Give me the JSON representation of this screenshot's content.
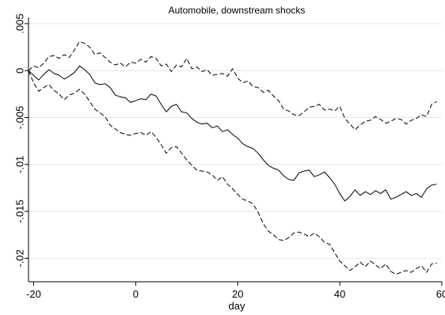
{
  "chart_data": {
    "type": "line",
    "title": "Automobile, downstream shocks",
    "xlabel": "day",
    "ylabel": "",
    "xlim": [
      -21,
      60
    ],
    "ylim": [
      -0.0225,
      0.0055
    ],
    "x_ticks": [
      -20,
      0,
      20,
      40,
      60
    ],
    "x_tick_labels": [
      "-20",
      "0",
      "20",
      "40",
      "60"
    ],
    "y_ticks": [
      0.005,
      0,
      -0.005,
      -0.01,
      -0.015,
      -0.02
    ],
    "y_tick_labels": [
      ".005",
      "0",
      "-.005",
      "-.01",
      "-.015",
      "-.02"
    ],
    "grid": "horizontal",
    "legend": "none",
    "colors": {
      "line": "#000000",
      "grid": "#e6e6e6",
      "axis": "#000000",
      "background": "#ffffff"
    },
    "series": [
      {
        "style": "dashed",
        "x": [
          -21,
          -20,
          -19,
          -18,
          -17,
          -16,
          -15,
          -14,
          -13,
          -12,
          -11,
          -10,
          -9,
          -8,
          -7,
          -6,
          -5,
          -4,
          -3,
          -2,
          -1,
          0,
          1,
          2,
          3,
          4,
          5,
          6,
          7,
          8,
          9,
          10,
          11,
          12,
          13,
          14,
          15,
          16,
          17,
          18,
          19,
          20,
          21,
          22,
          23,
          24,
          25,
          26,
          27,
          28,
          29,
          30,
          31,
          32,
          33,
          34,
          35,
          36,
          37,
          38,
          39,
          40,
          41,
          42,
          43,
          44,
          45,
          46,
          47,
          48,
          49,
          50,
          51,
          52,
          53,
          54,
          55,
          56,
          57,
          58,
          59
        ],
        "values": [
          0,
          0.0005,
          0.0003,
          0.0008,
          0.0015,
          0.0016,
          0.0013,
          0.0017,
          0.0014,
          0.0022,
          0.0031,
          0.0029,
          0.0025,
          0.0017,
          0.0019,
          0.0014,
          0.0009,
          0.0006,
          0.0008,
          0.0004,
          0.0009,
          0.0008,
          0.0012,
          0.0009,
          0.0015,
          0.0013,
          0.0005,
          0.0007,
          -0.0001,
          0.0006,
          0.0004,
          0.0013,
          0.0002,
          0.0004,
          -0.0001,
          0.0001,
          -0.0005,
          -0.0004,
          -0.0003,
          -0.0006,
          0.0002,
          -0.0008,
          -0.0013,
          -0.0011,
          -0.0017,
          -0.0018,
          -0.0023,
          -0.0021,
          -0.0027,
          -0.0032,
          -0.0041,
          -0.0043,
          -0.0047,
          -0.0048,
          -0.0044,
          -0.0039,
          -0.0038,
          -0.0036,
          -0.0042,
          -0.0041,
          -0.0043,
          -0.0038,
          -0.0051,
          -0.0057,
          -0.0063,
          -0.0058,
          -0.0054,
          -0.0053,
          -0.0049,
          -0.0052,
          -0.0056,
          -0.0054,
          -0.0051,
          -0.0052,
          -0.0057,
          -0.0053,
          -0.0051,
          -0.0047,
          -0.0049,
          -0.0036,
          -0.0033
        ]
      },
      {
        "style": "solid",
        "x": [
          -21,
          -20,
          -19,
          -18,
          -17,
          -16,
          -15,
          -14,
          -13,
          -12,
          -11,
          -10,
          -9,
          -8,
          -7,
          -6,
          -5,
          -4,
          -3,
          -2,
          -1,
          0,
          1,
          2,
          3,
          4,
          5,
          6,
          7,
          8,
          9,
          10,
          11,
          12,
          13,
          14,
          15,
          16,
          17,
          18,
          19,
          20,
          21,
          22,
          23,
          24,
          25,
          26,
          27,
          28,
          29,
          30,
          31,
          32,
          33,
          34,
          35,
          36,
          37,
          38,
          39,
          40,
          41,
          42,
          43,
          44,
          45,
          46,
          47,
          48,
          49,
          50,
          51,
          52,
          53,
          54,
          55,
          56,
          57,
          58,
          59
        ],
        "values": [
          0,
          -0.0005,
          -0.001,
          -0.0004,
          0.0001,
          -0.0003,
          -0.0005,
          -0.0009,
          -0.0006,
          -0.0002,
          0.0005,
          0.0001,
          -0.0004,
          -0.0013,
          -0.0015,
          -0.0014,
          -0.0018,
          -0.0026,
          -0.0028,
          -0.0029,
          -0.0034,
          -0.0032,
          -0.003,
          -0.0031,
          -0.0025,
          -0.0027,
          -0.0036,
          -0.0044,
          -0.0038,
          -0.0036,
          -0.0044,
          -0.0045,
          -0.0051,
          -0.0055,
          -0.0057,
          -0.0056,
          -0.0061,
          -0.0059,
          -0.0065,
          -0.0063,
          -0.0068,
          -0.0072,
          -0.0078,
          -0.0081,
          -0.0083,
          -0.0088,
          -0.0095,
          -0.0101,
          -0.0104,
          -0.0106,
          -0.0112,
          -0.0116,
          -0.0117,
          -0.0109,
          -0.0107,
          -0.0106,
          -0.0113,
          -0.0111,
          -0.0108,
          -0.0114,
          -0.0121,
          -0.0131,
          -0.0139,
          -0.0134,
          -0.0127,
          -0.0133,
          -0.0129,
          -0.0132,
          -0.0128,
          -0.0131,
          -0.0127,
          -0.0137,
          -0.0135,
          -0.0132,
          -0.0129,
          -0.0133,
          -0.0131,
          -0.0135,
          -0.0126,
          -0.0122,
          -0.0121
        ]
      },
      {
        "style": "dashed",
        "x": [
          -21,
          -20,
          -19,
          -18,
          -17,
          -16,
          -15,
          -14,
          -13,
          -12,
          -11,
          -10,
          -9,
          -8,
          -7,
          -6,
          -5,
          -4,
          -3,
          -2,
          -1,
          0,
          1,
          2,
          3,
          4,
          5,
          6,
          7,
          8,
          9,
          10,
          11,
          12,
          13,
          14,
          15,
          16,
          17,
          18,
          19,
          20,
          21,
          22,
          23,
          24,
          25,
          26,
          27,
          28,
          29,
          30,
          31,
          32,
          33,
          34,
          35,
          36,
          37,
          38,
          39,
          40,
          41,
          42,
          43,
          44,
          45,
          46,
          47,
          48,
          49,
          50,
          51,
          52,
          53,
          54,
          55,
          56,
          57,
          58,
          59
        ],
        "values": [
          0,
          -0.0013,
          -0.0022,
          -0.0018,
          -0.0015,
          -0.0021,
          -0.0025,
          -0.0031,
          -0.0026,
          -0.0024,
          -0.002,
          -0.0025,
          -0.0033,
          -0.0041,
          -0.0045,
          -0.0049,
          -0.0058,
          -0.0062,
          -0.0066,
          -0.0068,
          -0.0069,
          -0.0067,
          -0.0066,
          -0.0069,
          -0.0065,
          -0.0071,
          -0.0079,
          -0.0088,
          -0.0082,
          -0.0081,
          -0.0088,
          -0.0095,
          -0.0101,
          -0.0106,
          -0.0107,
          -0.0108,
          -0.0111,
          -0.0117,
          -0.0113,
          -0.0121,
          -0.0126,
          -0.0132,
          -0.0137,
          -0.0139,
          -0.0142,
          -0.0151,
          -0.0163,
          -0.0171,
          -0.0175,
          -0.018,
          -0.0181,
          -0.0178,
          -0.0173,
          -0.0172,
          -0.0174,
          -0.0177,
          -0.0173,
          -0.0177,
          -0.0183,
          -0.0185,
          -0.0194,
          -0.0203,
          -0.0208,
          -0.0213,
          -0.0209,
          -0.0204,
          -0.0209,
          -0.0203,
          -0.0207,
          -0.0211,
          -0.0206,
          -0.0214,
          -0.0217,
          -0.0215,
          -0.0213,
          -0.0215,
          -0.0211,
          -0.0208,
          -0.0215,
          -0.0206,
          -0.0205
        ]
      }
    ]
  }
}
